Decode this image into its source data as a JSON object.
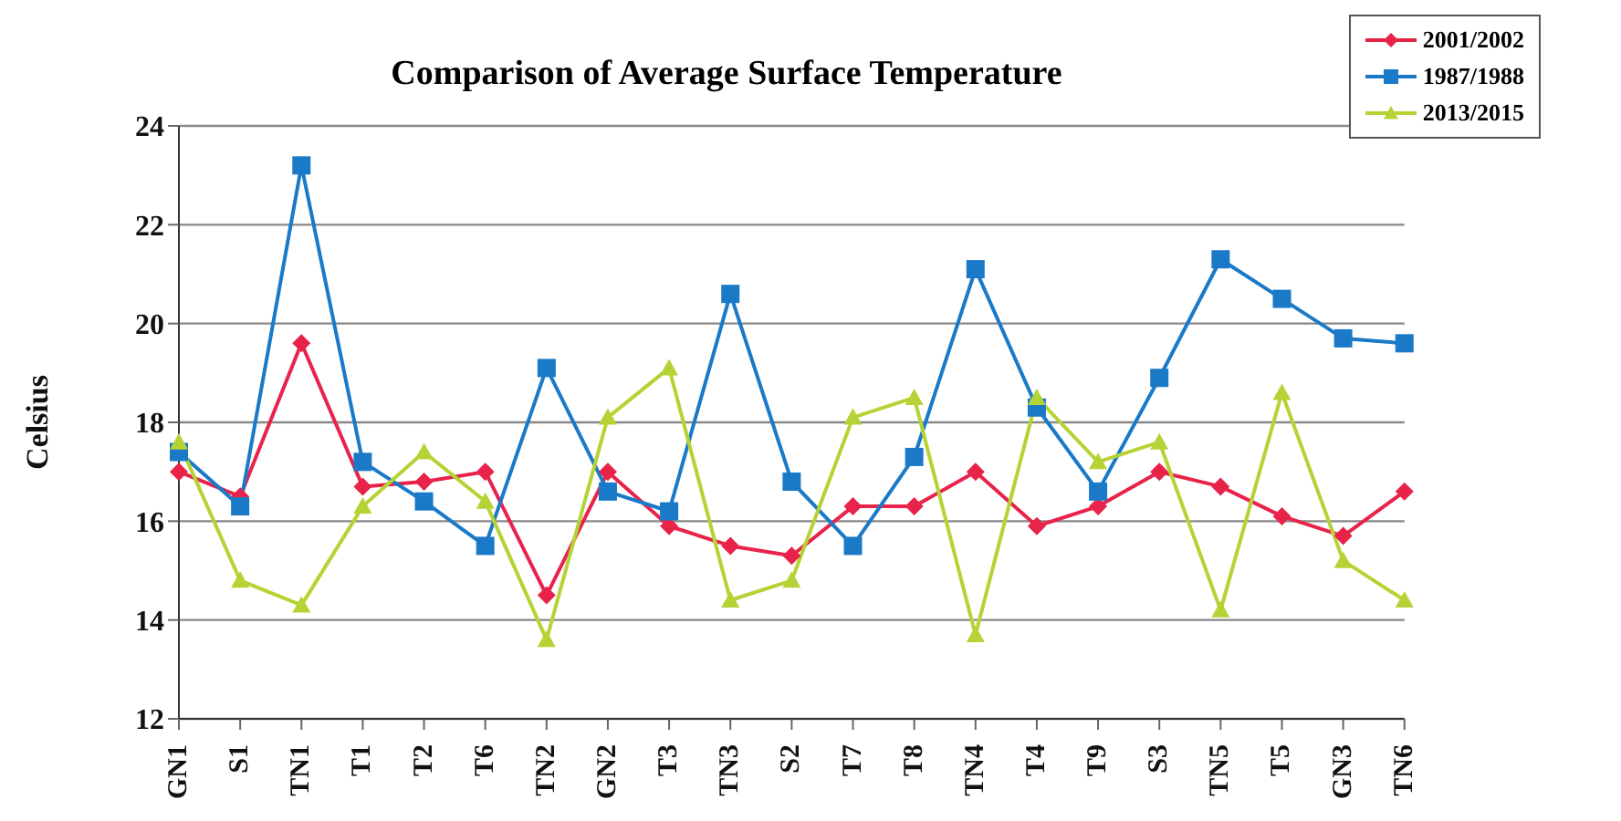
{
  "chart_data": {
    "type": "line",
    "title": "Comparison of Average Surface Temperature",
    "ylabel": "Celsius",
    "categories": [
      "GN1",
      "S1",
      "TN1",
      "T1",
      "T2",
      "T6",
      "TN2",
      "GN2",
      "T3",
      "TN3",
      "S2",
      "T7",
      "T8",
      "TN4",
      "T4",
      "T9",
      "S3",
      "TN5",
      "T5",
      "GN3",
      "TN6"
    ],
    "series": [
      {
        "name": "2001/2002",
        "color": "#e8234a",
        "marker": "diamond",
        "values": [
          17.0,
          16.5,
          19.6,
          16.7,
          16.8,
          17.0,
          14.5,
          17.0,
          15.9,
          15.5,
          15.3,
          16.3,
          16.3,
          17.0,
          15.9,
          16.3,
          17.0,
          16.7,
          16.1,
          15.7,
          16.6
        ]
      },
      {
        "name": "1987/1988",
        "color": "#1a7ac8",
        "marker": "square",
        "values": [
          17.4,
          16.3,
          23.2,
          17.2,
          16.4,
          15.5,
          19.1,
          16.6,
          16.2,
          20.6,
          16.8,
          15.5,
          17.3,
          21.1,
          18.3,
          16.6,
          18.9,
          21.3,
          20.5,
          19.7,
          19.6
        ]
      },
      {
        "name": "2013/2015",
        "color": "#b5d334",
        "marker": "triangle",
        "values": [
          17.6,
          14.8,
          14.3,
          16.3,
          17.4,
          16.4,
          13.6,
          18.1,
          19.1,
          14.4,
          14.8,
          18.1,
          18.5,
          13.7,
          18.5,
          17.2,
          17.6,
          14.2,
          18.6,
          15.2,
          14.4
        ]
      }
    ],
    "ylim": [
      12,
      24
    ],
    "yticks": [
      12,
      14,
      16,
      18,
      20,
      22,
      24
    ],
    "grid": "y",
    "legend": "top right",
    "line_style": "solid"
  }
}
